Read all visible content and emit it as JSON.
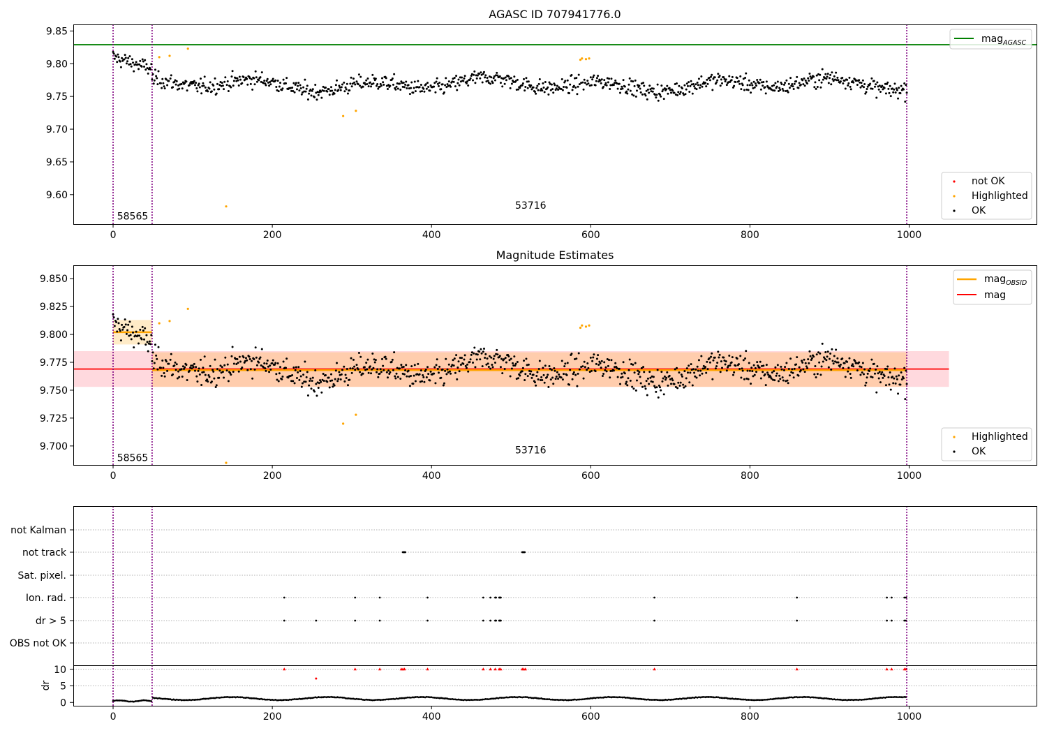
{
  "chart_data": [
    {
      "type": "scatter",
      "title": "AGASC ID 707941776.0",
      "xlim": [
        -50,
        1160
      ],
      "ylim": [
        9.555,
        9.86
      ],
      "xticks": [
        0,
        200,
        400,
        600,
        800,
        1000
      ],
      "yticks": [
        9.6,
        9.65,
        9.7,
        9.75,
        9.8,
        9.85
      ],
      "ytick_labels": [
        "9.60",
        "9.65",
        "9.70",
        "9.75",
        "9.80",
        "9.85"
      ],
      "obsid_boundaries": [
        0,
        49,
        997
      ],
      "obsid_labels": [
        {
          "text": "58565",
          "x": 5,
          "y": 9.567
        },
        {
          "text": "53716",
          "x": 505,
          "y": 9.584
        }
      ],
      "mag_agasc": 9.829,
      "legend_top": [
        {
          "label": "mag",
          "sub": "AGASC",
          "color": "#008000"
        }
      ],
      "legend_bottom": [
        {
          "label": "not OK",
          "color": "#ff0000"
        },
        {
          "label": "Highlighted",
          "color": "#ffa500"
        },
        {
          "label": "OK",
          "color": "#000000"
        }
      ],
      "highlighted_points": [
        [
          58,
          9.81
        ],
        [
          71,
          9.812
        ],
        [
          94,
          9.823
        ],
        [
          142,
          9.582
        ],
        [
          289,
          9.72
        ],
        [
          305,
          9.728
        ],
        [
          587,
          9.806
        ],
        [
          589,
          9.808
        ],
        [
          594,
          9.807
        ],
        [
          598,
          9.808
        ]
      ],
      "ok_series": {
        "n_points": 998,
        "x_range": [
          0,
          997
        ],
        "typical_range": [
          9.735,
          9.805
        ]
      }
    },
    {
      "type": "scatter",
      "title": "Magnitude Estimates",
      "xlim": [
        -50,
        1160
      ],
      "ylim": [
        9.683,
        9.862
      ],
      "xticks": [
        0,
        200,
        400,
        600,
        800,
        1000
      ],
      "yticks": [
        9.7,
        9.725,
        9.75,
        9.775,
        9.8,
        9.825,
        9.85
      ],
      "ytick_labels": [
        "9.700",
        "9.725",
        "9.750",
        "9.775",
        "9.800",
        "9.825",
        "9.850"
      ],
      "obsid_boundaries": [
        0,
        49,
        997
      ],
      "obsid_labels": [
        {
          "text": "58565",
          "x": 5,
          "y": 9.6895
        },
        {
          "text": "53716",
          "x": 505,
          "y": 9.6965
        }
      ],
      "mag": {
        "value": 9.769,
        "band": [
          9.753,
          9.785
        ],
        "x_range": [
          -50,
          1050
        ]
      },
      "mag_obsid": [
        {
          "x_range": [
            0,
            49
          ],
          "value": 9.802,
          "band": [
            9.791,
            9.813
          ]
        },
        {
          "x_range": [
            49,
            997
          ],
          "value": 9.768,
          "band": [
            9.753,
            9.784
          ]
        }
      ],
      "legend_top": [
        {
          "label": "mag",
          "sub": "OBSID",
          "color": "#ffa500"
        },
        {
          "label": "mag",
          "color": "#ff0000"
        }
      ],
      "legend_bottom": [
        {
          "label": "Highlighted",
          "color": "#ffa500"
        },
        {
          "label": "OK",
          "color": "#000000"
        }
      ],
      "highlighted_points": [
        [
          58,
          9.81
        ],
        [
          71,
          9.812
        ],
        [
          94,
          9.823
        ],
        [
          142,
          9.683
        ],
        [
          289,
          9.72
        ],
        [
          305,
          9.728
        ],
        [
          587,
          9.806
        ],
        [
          589,
          9.808
        ],
        [
          594,
          9.807
        ],
        [
          598,
          9.808
        ]
      ]
    },
    {
      "type": "scatter",
      "title": "",
      "xlim": [
        -50,
        1160
      ],
      "xticks": [
        0,
        200,
        400,
        600,
        800,
        1000
      ],
      "flag_categories": [
        "not Kalman",
        "not track",
        "Sat. pixel.",
        "Ion. rad.",
        "dr > 5",
        "OBS not OK"
      ],
      "flags": {
        "not Kalman": [],
        "not track": [
          364,
          365,
          366,
          367,
          514,
          515,
          516,
          517
        ],
        "Sat. pixel.": [],
        "Ion. rad.": [
          215,
          304,
          335,
          395,
          465,
          474,
          480,
          481,
          485,
          486,
          487,
          680,
          859,
          972,
          978,
          994,
          996
        ],
        "dr > 5": [
          215,
          255,
          304,
          335,
          395,
          465,
          474,
          480,
          481,
          485,
          486,
          487,
          680,
          859,
          972,
          978,
          994,
          996
        ],
        "OBS not OK": []
      },
      "dr": {
        "ylabel": "dr",
        "yticks": [
          0,
          5,
          10
        ],
        "ylim": [
          -1,
          11
        ],
        "clipped_red_x": [
          215,
          304,
          335,
          362,
          364,
          366,
          395,
          465,
          474,
          480,
          485,
          487,
          514,
          516,
          518,
          680,
          859,
          972,
          978,
          994,
          996
        ],
        "red_points": [
          [
            255,
            7.2
          ]
        ],
        "typical_range": [
          0,
          2
        ]
      }
    }
  ]
}
